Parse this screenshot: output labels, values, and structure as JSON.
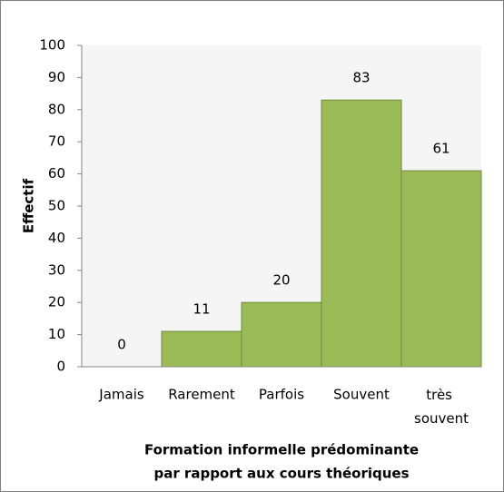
{
  "chart_data": {
    "type": "bar",
    "categories": [
      "Jamais",
      "Rarement",
      "Parfois",
      "Souvent",
      "très souvent"
    ],
    "values": [
      0,
      11,
      20,
      83,
      61
    ],
    "color": "#9bbb59",
    "ylabel": "Effectif",
    "xlabel": [
      "Formation informelle prédominante",
      "par rapport aux cours théoriques"
    ],
    "ylim": [
      0,
      100
    ],
    "yticks": [
      0,
      10,
      20,
      30,
      40,
      50,
      60,
      70,
      80,
      90,
      100
    ],
    "grid": false
  }
}
